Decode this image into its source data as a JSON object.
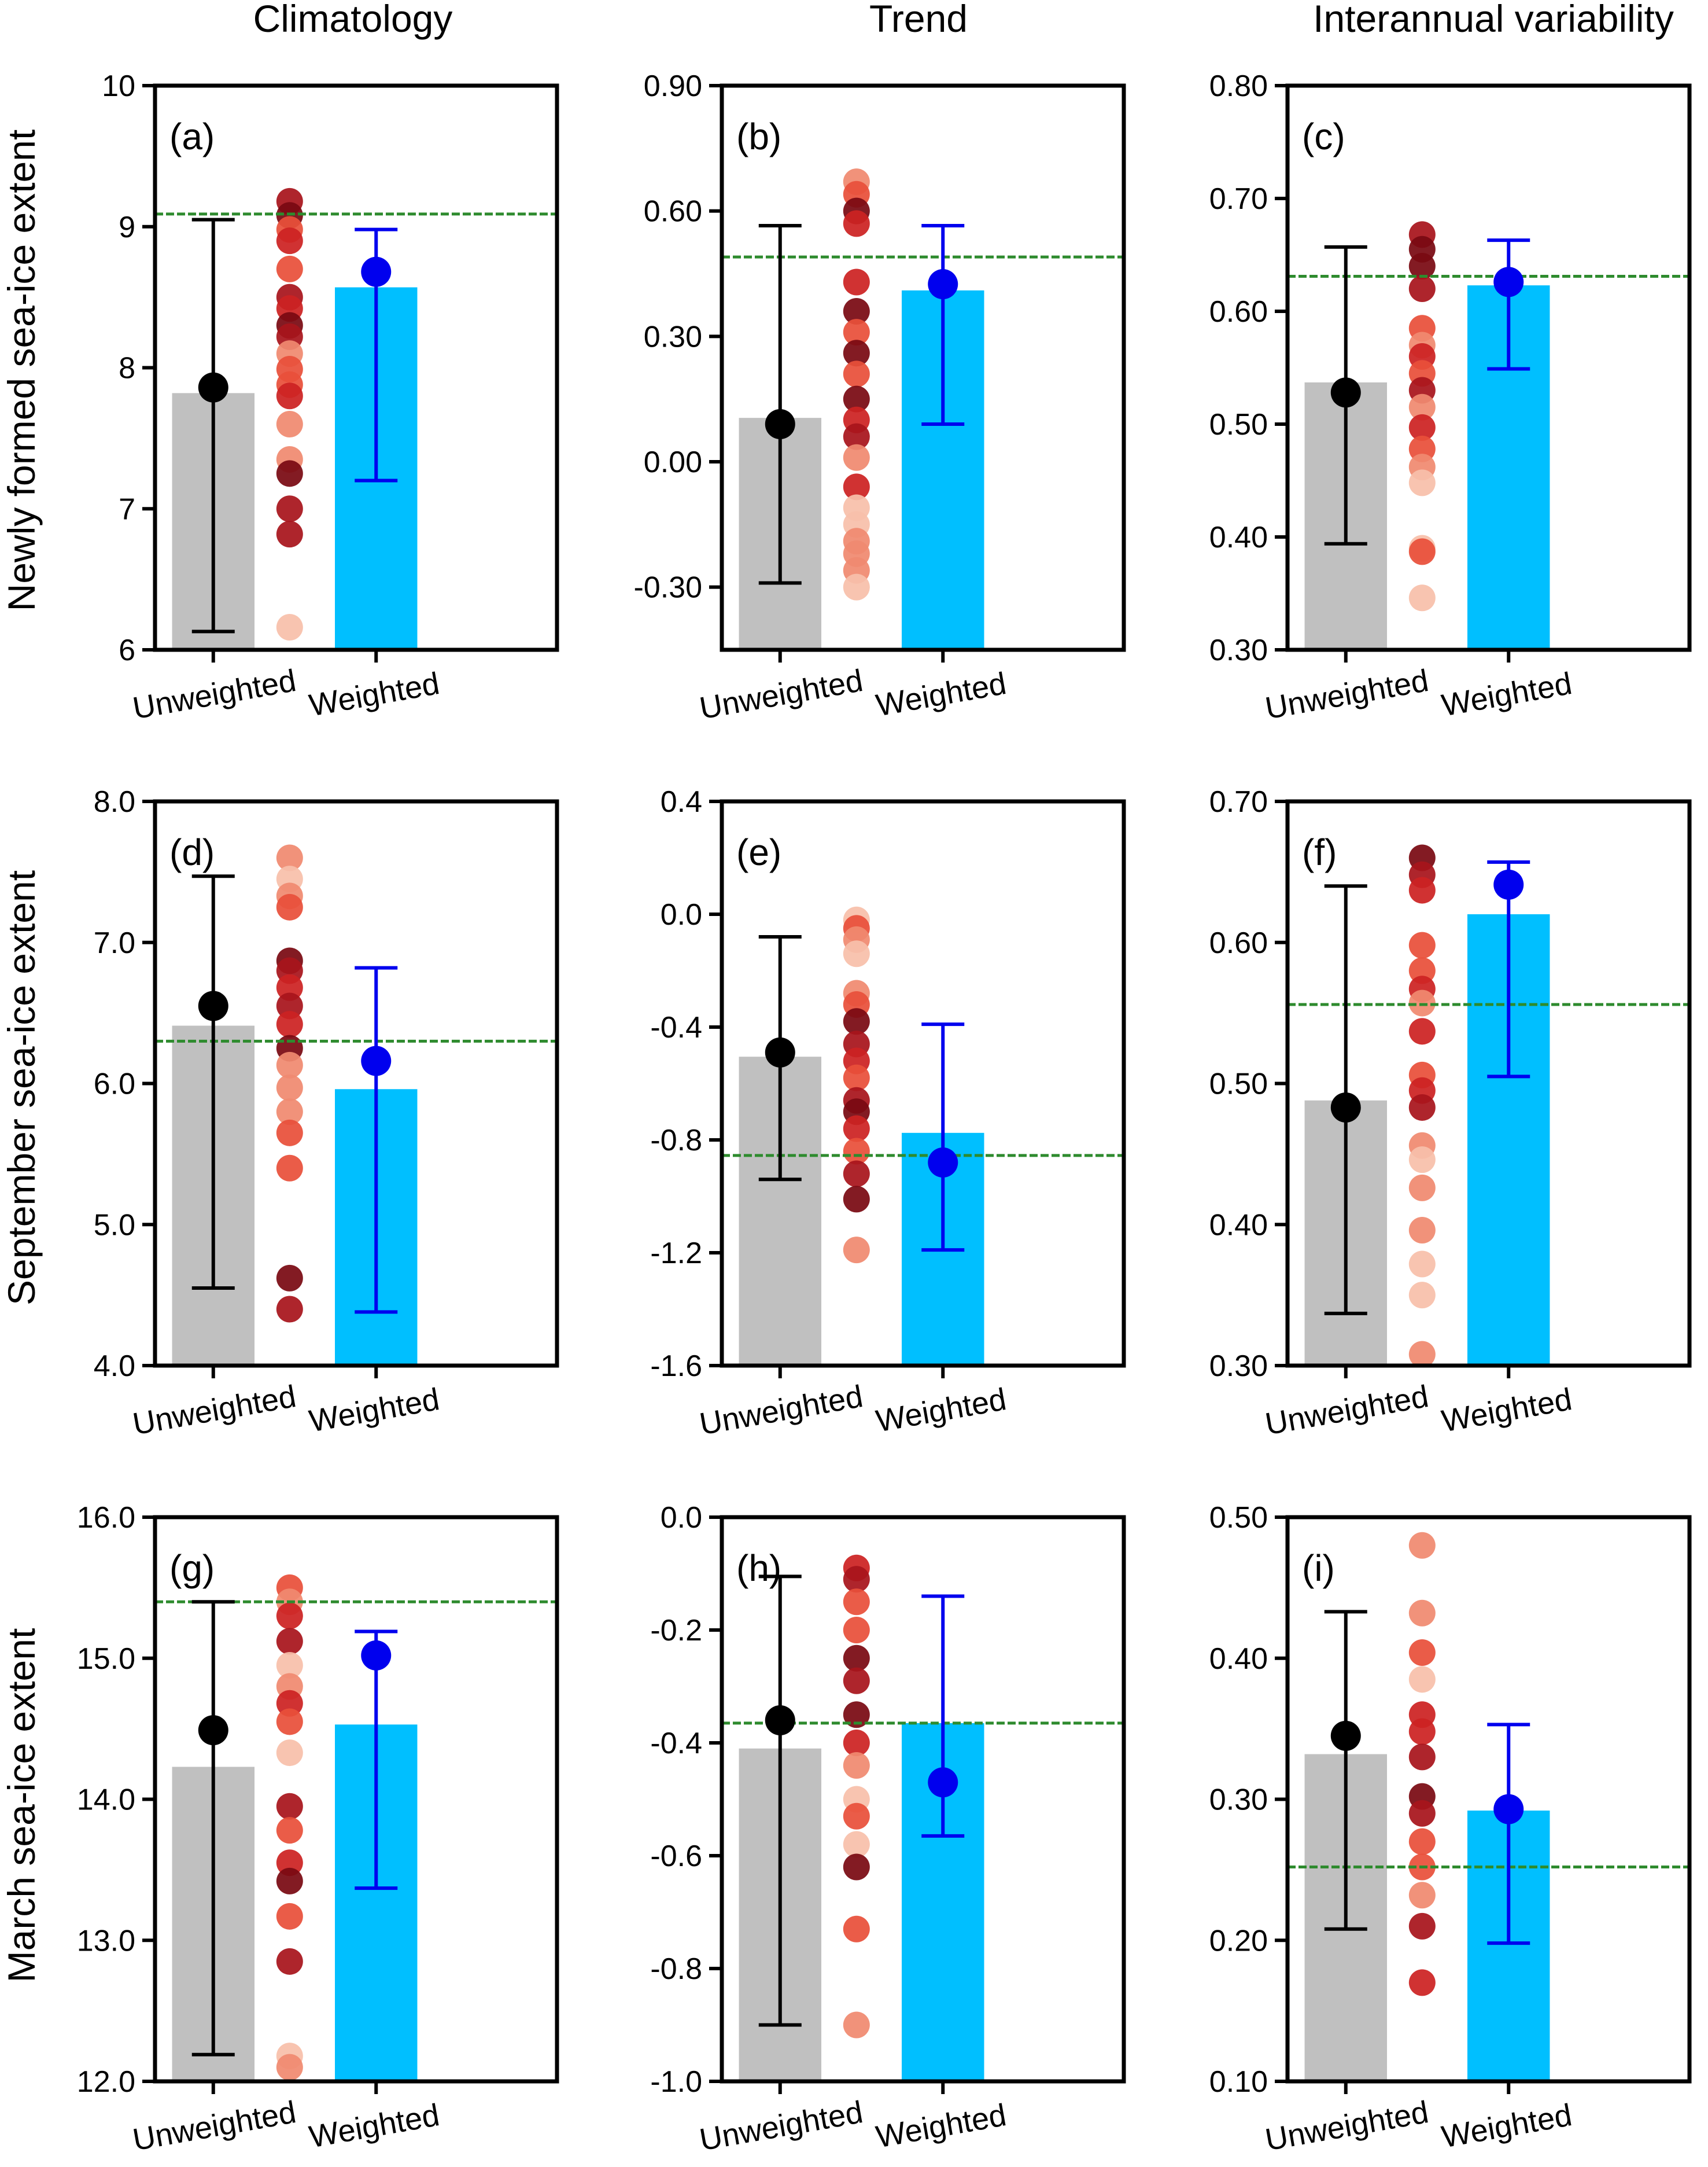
{
  "column_titles": [
    "Climatology",
    "Trend",
    "Interannual variability"
  ],
  "row_titles": [
    "Newly formed sea-ice extent",
    "September sea-ice extent",
    "March sea-ice extent"
  ],
  "category_labels": [
    "Unweighted",
    "Weighted"
  ],
  "colors": {
    "unweighted_bar": "#c0c0c0",
    "weighted_bar": "#00bfff",
    "unweighted_mean": "#000000",
    "weighted_mean": "#0000ee",
    "observation_line": "#2e8b2e",
    "model_points": [
      "#7a0a12",
      "#a8141c",
      "#cc2222",
      "#e8503a",
      "#f08a70",
      "#f8c0aa"
    ]
  },
  "chart_data": [
    {
      "type": "bar",
      "panel": "(a)",
      "row": 0,
      "col": 0,
      "ylim": [
        6,
        10
      ],
      "yticks": [
        "6",
        "7",
        "8",
        "9",
        "10"
      ],
      "categories": [
        "Unweighted",
        "Weighted"
      ],
      "bars": [
        7.82,
        8.57
      ],
      "means": [
        7.86,
        8.68
      ],
      "errors": [
        [
          6.13,
          9.05
        ],
        [
          7.2,
          8.98
        ]
      ],
      "observation": 9.09,
      "models": [
        9.18,
        9.08,
        8.98,
        8.9,
        8.7,
        8.5,
        8.42,
        8.3,
        8.22,
        8.1,
        7.99,
        7.88,
        7.8,
        7.6,
        7.35,
        7.25,
        7.0,
        6.82,
        6.16
      ],
      "model_shades": [
        1,
        0,
        3,
        2,
        3,
        1,
        2,
        0,
        1,
        4,
        3,
        3,
        2,
        4,
        4,
        0,
        1,
        1,
        5
      ]
    },
    {
      "type": "bar",
      "panel": "(b)",
      "row": 0,
      "col": 1,
      "ylim": [
        -0.45,
        0.9
      ],
      "yticks": [
        "-0.30",
        "0.00",
        "0.30",
        "0.60",
        "0.90"
      ],
      "categories": [
        "Unweighted",
        "Weighted"
      ],
      "bars": [
        0.105,
        0.41
      ],
      "means": [
        0.09,
        0.425
      ],
      "errors": [
        [
          -0.29,
          0.565
        ],
        [
          0.09,
          0.565
        ]
      ],
      "observation": 0.49,
      "models": [
        0.67,
        0.64,
        0.6,
        0.57,
        0.43,
        0.36,
        0.31,
        0.26,
        0.21,
        0.15,
        0.1,
        0.06,
        0.01,
        -0.06,
        -0.11,
        -0.15,
        -0.19,
        -0.22,
        -0.26,
        -0.3
      ],
      "model_shades": [
        4,
        3,
        0,
        2,
        2,
        0,
        3,
        0,
        3,
        0,
        2,
        1,
        4,
        2,
        5,
        5,
        4,
        4,
        4,
        5
      ]
    },
    {
      "type": "bar",
      "panel": "(c)",
      "row": 0,
      "col": 2,
      "ylim": [
        0.3,
        0.8
      ],
      "yticks": [
        "0.30",
        "0.40",
        "0.50",
        "0.60",
        "0.70",
        "0.80"
      ],
      "categories": [
        "Unweighted",
        "Weighted"
      ],
      "bars": [
        0.537,
        0.623
      ],
      "means": [
        0.528,
        0.626
      ],
      "errors": [
        [
          0.394,
          0.657
        ],
        [
          0.549,
          0.663
        ]
      ],
      "observation": 0.631,
      "models": [
        0.668,
        0.655,
        0.64,
        0.62,
        0.585,
        0.57,
        0.56,
        0.545,
        0.53,
        0.515,
        0.497,
        0.478,
        0.462,
        0.448,
        0.39,
        0.387,
        0.346
      ],
      "model_shades": [
        1,
        0,
        0,
        1,
        3,
        4,
        2,
        3,
        1,
        4,
        2,
        3,
        4,
        5,
        5,
        3,
        5
      ]
    },
    {
      "type": "bar",
      "panel": "(d)",
      "row": 1,
      "col": 0,
      "ylim": [
        4.0,
        8.0
      ],
      "yticks": [
        "4.0",
        "5.0",
        "6.0",
        "7.0",
        "8.0"
      ],
      "categories": [
        "Unweighted",
        "Weighted"
      ],
      "bars": [
        6.41,
        5.96
      ],
      "means": [
        6.55,
        6.16
      ],
      "errors": [
        [
          4.55,
          7.47
        ],
        [
          4.38,
          6.82
        ]
      ],
      "observation": 6.3,
      "models": [
        7.6,
        7.45,
        7.33,
        7.25,
        6.87,
        6.8,
        6.68,
        6.55,
        6.42,
        6.25,
        6.13,
        5.97,
        5.8,
        5.65,
        5.4,
        4.62,
        4.4
      ],
      "model_shades": [
        4,
        5,
        4,
        3,
        0,
        1,
        2,
        1,
        2,
        0,
        4,
        4,
        4,
        3,
        3,
        0,
        1
      ]
    },
    {
      "type": "bar",
      "panel": "(e)",
      "row": 1,
      "col": 1,
      "ylim": [
        -1.6,
        0.4
      ],
      "yticks": [
        "-1.6",
        "-1.2",
        "-0.8",
        "-0.4",
        "0.0",
        "0.4"
      ],
      "categories": [
        "Unweighted",
        "Weighted"
      ],
      "bars": [
        -0.505,
        -0.775
      ],
      "means": [
        -0.49,
        -0.88
      ],
      "errors": [
        [
          -0.94,
          -0.08
        ],
        [
          -1.19,
          -0.39
        ]
      ],
      "observation": -0.855,
      "models": [
        -0.02,
        -0.05,
        -0.09,
        -0.14,
        -0.28,
        -0.32,
        -0.38,
        -0.46,
        -0.52,
        -0.58,
        -0.66,
        -0.7,
        -0.76,
        -0.84,
        -0.92,
        -1.01,
        -1.19
      ],
      "model_shades": [
        5,
        3,
        4,
        5,
        4,
        3,
        0,
        1,
        2,
        3,
        1,
        0,
        2,
        3,
        1,
        0,
        4
      ]
    },
    {
      "type": "bar",
      "panel": "(f)",
      "row": 1,
      "col": 2,
      "ylim": [
        0.3,
        0.7
      ],
      "yticks": [
        "0.30",
        "0.40",
        "0.50",
        "0.60",
        "0.70"
      ],
      "categories": [
        "Unweighted",
        "Weighted"
      ],
      "bars": [
        0.488,
        0.62
      ],
      "means": [
        0.483,
        0.641
      ],
      "errors": [
        [
          0.337,
          0.64
        ],
        [
          0.505,
          0.657
        ]
      ],
      "observation": 0.556,
      "models": [
        0.66,
        0.648,
        0.637,
        0.598,
        0.58,
        0.567,
        0.557,
        0.537,
        0.506,
        0.495,
        0.483,
        0.456,
        0.446,
        0.426,
        0.396,
        0.372,
        0.35,
        0.308
      ],
      "model_shades": [
        0,
        1,
        2,
        3,
        3,
        2,
        4,
        2,
        3,
        2,
        1,
        4,
        5,
        4,
        4,
        5,
        5,
        4
      ]
    },
    {
      "type": "bar",
      "panel": "(g)",
      "row": 2,
      "col": 0,
      "ylim": [
        12.0,
        16.0
      ],
      "yticks": [
        "12.0",
        "13.0",
        "14.0",
        "15.0",
        "16.0"
      ],
      "categories": [
        "Unweighted",
        "Weighted"
      ],
      "bars": [
        14.23,
        14.53
      ],
      "means": [
        14.49,
        15.02
      ],
      "errors": [
        [
          12.19,
          15.4
        ],
        [
          13.37,
          15.19
        ]
      ],
      "observation": 15.4,
      "models": [
        15.5,
        15.4,
        15.3,
        15.12,
        14.95,
        14.8,
        14.68,
        14.55,
        14.33,
        13.95,
        13.78,
        13.55,
        13.42,
        13.17,
        12.85,
        12.18,
        12.1
      ],
      "model_shades": [
        3,
        4,
        2,
        1,
        5,
        4,
        2,
        3,
        5,
        1,
        3,
        2,
        0,
        3,
        1,
        5,
        4
      ]
    },
    {
      "type": "bar",
      "panel": "(h)",
      "row": 2,
      "col": 1,
      "ylim": [
        -1.0,
        0.0
      ],
      "yticks": [
        "-1.0",
        "-0.8",
        "-0.6",
        "-0.4",
        "-0.2",
        "0.0"
      ],
      "categories": [
        "Unweighted",
        "Weighted"
      ],
      "bars": [
        -0.41,
        -0.365
      ],
      "means": [
        -0.36,
        -0.47
      ],
      "errors": [
        [
          -0.9,
          -0.105
        ],
        [
          -0.565,
          -0.14
        ]
      ],
      "observation": -0.365,
      "models": [
        -0.09,
        -0.11,
        -0.15,
        -0.2,
        -0.25,
        -0.29,
        -0.35,
        -0.4,
        -0.44,
        -0.5,
        -0.53,
        -0.58,
        -0.62,
        -0.73,
        -0.9
      ],
      "model_shades": [
        2,
        1,
        3,
        3,
        0,
        1,
        0,
        2,
        4,
        5,
        3,
        5,
        0,
        3,
        4
      ]
    },
    {
      "type": "bar",
      "panel": "(i)",
      "row": 2,
      "col": 2,
      "ylim": [
        0.1,
        0.5
      ],
      "yticks": [
        "0.10",
        "0.20",
        "0.30",
        "0.40",
        "0.50"
      ],
      "categories": [
        "Unweighted",
        "Weighted"
      ],
      "bars": [
        0.332,
        0.292
      ],
      "means": [
        0.345,
        0.293
      ],
      "errors": [
        [
          0.208,
          0.433
        ],
        [
          0.198,
          0.353
        ]
      ],
      "observation": 0.252,
      "models": [
        0.48,
        0.432,
        0.404,
        0.385,
        0.36,
        0.348,
        0.33,
        0.302,
        0.29,
        0.27,
        0.252,
        0.232,
        0.21,
        0.17
      ],
      "model_shades": [
        4,
        4,
        3,
        5,
        2,
        2,
        1,
        0,
        1,
        3,
        3,
        4,
        1,
        2
      ]
    }
  ]
}
